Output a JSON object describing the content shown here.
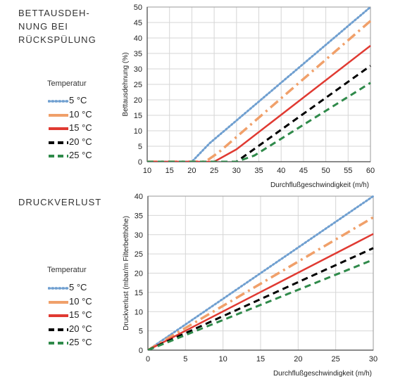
{
  "chart_data": [
    {
      "type": "line",
      "title": "BETTAUSDEH-\nNUNG BEI\nRÜCKSPÜLUNG",
      "title_lines": [
        "BETTAUSDEH-",
        "NUNG BEI",
        "RÜCKSPÜLUNG"
      ],
      "xlabel": "Durchflußgeschwindigkeit (m/h)",
      "ylabel": "Bettausdehnung (%)",
      "xlim": [
        10,
        60
      ],
      "ylim": [
        0,
        50
      ],
      "xticks": [
        10,
        15,
        20,
        25,
        30,
        35,
        40,
        45,
        50,
        55,
        60
      ],
      "yticks": [
        0,
        5,
        10,
        15,
        20,
        25,
        30,
        35,
        40,
        45,
        50
      ],
      "grid": true,
      "legend_title": "Temperatur",
      "series": [
        {
          "name": "5 °C",
          "color": "#6f9fd0",
          "style": "dotted",
          "x": [
            10,
            20,
            24,
            60
          ],
          "y": [
            0,
            0,
            6,
            50
          ]
        },
        {
          "name": "10 °C",
          "color": "#f0a06a",
          "style": "dashdot",
          "x": [
            10,
            23,
            26,
            60
          ],
          "y": [
            0,
            0,
            3,
            45.5
          ]
        },
        {
          "name": "15 °C",
          "color": "#e03a32",
          "style": "solid",
          "x": [
            10,
            25,
            30,
            60
          ],
          "y": [
            0,
            0,
            4,
            37.5
          ]
        },
        {
          "name": "20 °C",
          "color": "#000000",
          "style": "dashed",
          "x": [
            10,
            30,
            60
          ],
          "y": [
            0,
            0,
            31
          ]
        },
        {
          "name": "25 °C",
          "color": "#2f8a4a",
          "style": "dashed",
          "x": [
            10,
            30,
            34,
            60
          ],
          "y": [
            0,
            0,
            2,
            25.5
          ]
        }
      ]
    },
    {
      "type": "line",
      "title": "DRUCKVERLUST",
      "title_lines": [
        "DRUCKVERLUST"
      ],
      "xlabel": "Durchflußgeschwindigkeit (m/h)",
      "ylabel": "Druckverlust (mbar/m Filterbetthöhe)",
      "xlim": [
        0,
        30
      ],
      "ylim": [
        0,
        40
      ],
      "xticks": [
        0,
        5,
        10,
        15,
        20,
        25,
        30
      ],
      "yticks": [
        0,
        5,
        10,
        15,
        20,
        25,
        30,
        35,
        40
      ],
      "grid": true,
      "legend_title": "Temperatur",
      "series": [
        {
          "name": "5 °C",
          "color": "#6f9fd0",
          "style": "dotted",
          "x": [
            0,
            30
          ],
          "y": [
            0,
            40
          ]
        },
        {
          "name": "10 °C",
          "color": "#f0a06a",
          "style": "dashdot",
          "x": [
            0,
            30
          ],
          "y": [
            0,
            34.5
          ]
        },
        {
          "name": "15 °C",
          "color": "#e03a32",
          "style": "solid",
          "x": [
            0,
            30
          ],
          "y": [
            0,
            30.2
          ]
        },
        {
          "name": "20 °C",
          "color": "#000000",
          "style": "dashed",
          "x": [
            0,
            30
          ],
          "y": [
            0,
            26.5
          ]
        },
        {
          "name": "25 °C",
          "color": "#2f8a4a",
          "style": "dashed",
          "x": [
            0,
            30
          ],
          "y": [
            0,
            23.5
          ]
        }
      ]
    }
  ]
}
